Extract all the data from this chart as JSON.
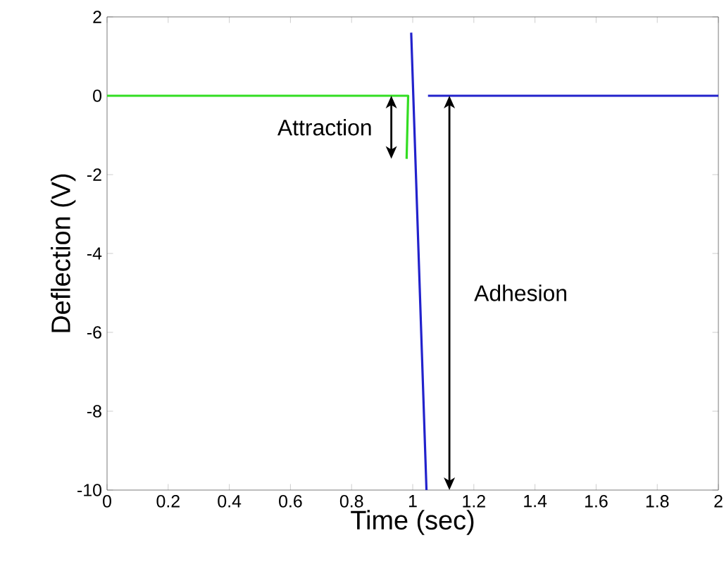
{
  "chart_data": {
    "type": "line",
    "xlabel": "Time (sec)",
    "ylabel": "Deflection (V)",
    "xlim": [
      0,
      2
    ],
    "ylim": [
      -10,
      2
    ],
    "xticks": [
      0,
      0.2,
      0.4,
      0.6,
      0.8,
      1,
      1.2,
      1.4,
      1.6,
      1.8,
      2
    ],
    "yticks": [
      -10,
      -8,
      -6,
      -4,
      -2,
      0,
      2
    ],
    "grid": false,
    "marker": "none",
    "line_style": "solid",
    "series": [
      {
        "color": "#33dd22",
        "x": [
          0,
          0.985,
          0.98
        ],
        "values": [
          0,
          0,
          -1.6
        ]
      },
      {
        "color": "#2222cc",
        "x": [
          0.995,
          1.045,
          1.047,
          1.05,
          2
        ],
        "values": [
          1.6,
          -10,
          null,
          0,
          0
        ]
      }
    ],
    "annotations": [
      "Attraction",
      "Adhesion"
    ]
  }
}
